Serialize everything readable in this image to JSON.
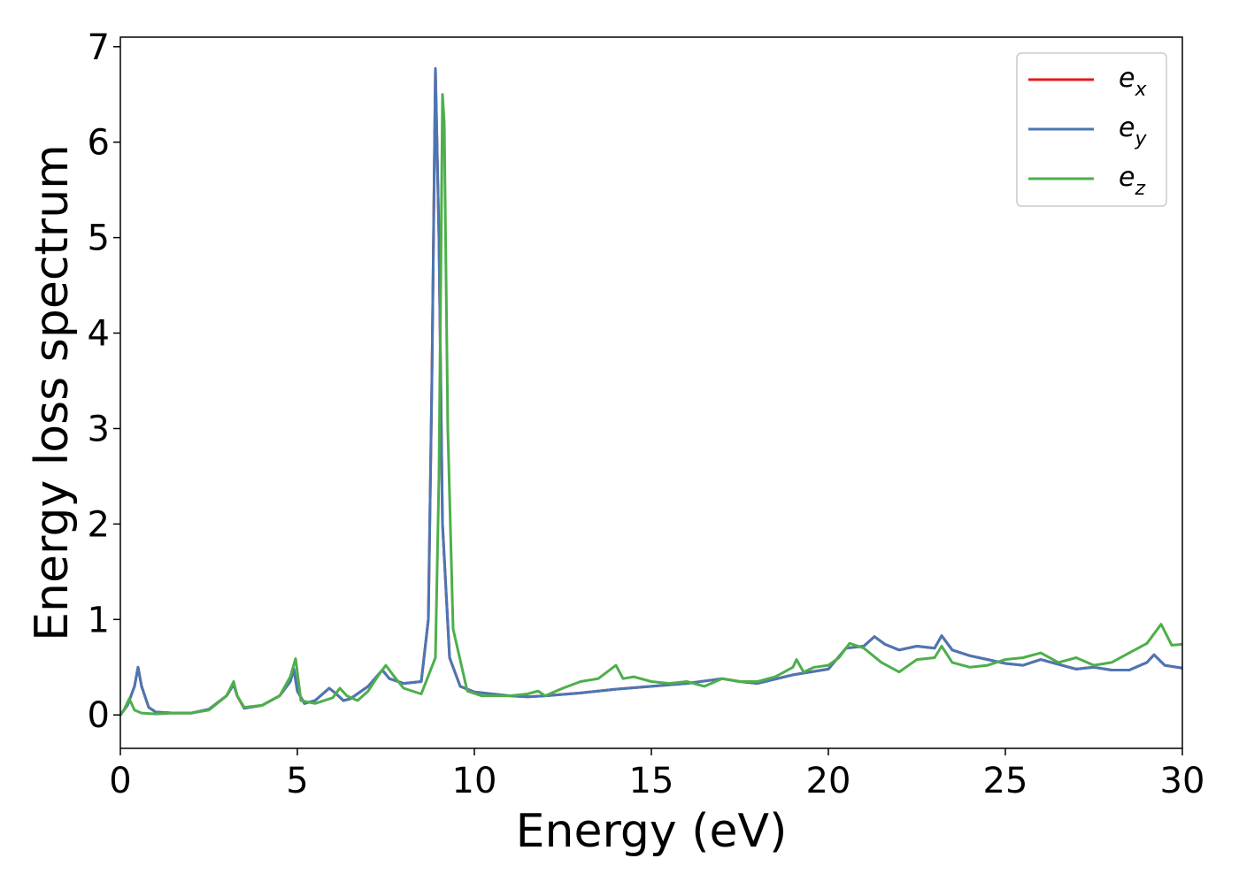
{
  "chart_data": {
    "type": "line",
    "title": "",
    "xlabel": "Energy (eV)",
    "ylabel": "Energy loss spectrum",
    "xlim": [
      0,
      30
    ],
    "ylim": [
      -0.35,
      7.1
    ],
    "xticks": [
      0,
      5,
      10,
      15,
      20,
      25,
      30
    ],
    "yticks": [
      0,
      1,
      2,
      3,
      4,
      5,
      6,
      7
    ],
    "xtick_labels": [
      "0",
      "5",
      "10",
      "15",
      "20",
      "25",
      "30"
    ],
    "ytick_labels": [
      "0",
      "1",
      "2",
      "3",
      "4",
      "5",
      "6",
      "7"
    ],
    "grid": false,
    "legend_position": "top-right",
    "series": [
      {
        "name": "e_x",
        "label_base": "e",
        "label_sub": "x",
        "color": "#e41a1c",
        "x": [
          0,
          0.2,
          0.4,
          0.5,
          0.6,
          0.8,
          1.0,
          1.5,
          2.0,
          2.5,
          3.0,
          3.2,
          3.3,
          3.5,
          4.0,
          4.5,
          4.8,
          4.9,
          5.0,
          5.2,
          5.5,
          5.9,
          6.1,
          6.3,
          6.5,
          7.0,
          7.4,
          7.6,
          8.0,
          8.5,
          8.7,
          8.8,
          8.9,
          9.0,
          9.1,
          9.3,
          9.6,
          10.0,
          10.5,
          11.0,
          11.5,
          12.0,
          13.0,
          14.0,
          15.0,
          16.0,
          17.0,
          17.5,
          18.0,
          19.0,
          20.0,
          20.5,
          21.0,
          21.3,
          21.6,
          22.0,
          22.5,
          23.0,
          23.2,
          23.5,
          24.0,
          24.5,
          25.0,
          25.5,
          26.0,
          26.5,
          27.0,
          27.5,
          28.0,
          28.5,
          29.0,
          29.2,
          29.5,
          30.0
        ],
        "y": [
          0.0,
          0.1,
          0.3,
          0.5,
          0.3,
          0.08,
          0.03,
          0.02,
          0.02,
          0.06,
          0.2,
          0.32,
          0.2,
          0.07,
          0.1,
          0.2,
          0.35,
          0.48,
          0.25,
          0.12,
          0.15,
          0.28,
          0.22,
          0.15,
          0.17,
          0.3,
          0.47,
          0.38,
          0.33,
          0.35,
          1.0,
          3.5,
          6.77,
          5.0,
          2.0,
          0.6,
          0.3,
          0.24,
          0.22,
          0.2,
          0.19,
          0.2,
          0.23,
          0.27,
          0.3,
          0.33,
          0.38,
          0.35,
          0.33,
          0.42,
          0.48,
          0.7,
          0.72,
          0.82,
          0.74,
          0.68,
          0.72,
          0.7,
          0.83,
          0.68,
          0.62,
          0.58,
          0.54,
          0.52,
          0.58,
          0.53,
          0.48,
          0.5,
          0.47,
          0.47,
          0.55,
          0.63,
          0.52,
          0.49
        ]
      },
      {
        "name": "e_y",
        "label_base": "e",
        "label_sub": "y",
        "color": "#4a77b4",
        "x": [
          0,
          0.2,
          0.4,
          0.5,
          0.6,
          0.8,
          1.0,
          1.5,
          2.0,
          2.5,
          3.0,
          3.2,
          3.3,
          3.5,
          4.0,
          4.5,
          4.8,
          4.9,
          5.0,
          5.2,
          5.5,
          5.9,
          6.1,
          6.3,
          6.5,
          7.0,
          7.4,
          7.6,
          8.0,
          8.5,
          8.7,
          8.8,
          8.9,
          9.0,
          9.1,
          9.3,
          9.6,
          10.0,
          10.5,
          11.0,
          11.5,
          12.0,
          13.0,
          14.0,
          15.0,
          16.0,
          17.0,
          17.5,
          18.0,
          19.0,
          20.0,
          20.5,
          21.0,
          21.3,
          21.6,
          22.0,
          22.5,
          23.0,
          23.2,
          23.5,
          24.0,
          24.5,
          25.0,
          25.5,
          26.0,
          26.5,
          27.0,
          27.5,
          28.0,
          28.5,
          29.0,
          29.2,
          29.5,
          30.0
        ],
        "y": [
          0.0,
          0.1,
          0.3,
          0.5,
          0.3,
          0.08,
          0.03,
          0.02,
          0.02,
          0.06,
          0.2,
          0.32,
          0.2,
          0.07,
          0.1,
          0.2,
          0.35,
          0.48,
          0.25,
          0.12,
          0.15,
          0.28,
          0.22,
          0.15,
          0.17,
          0.3,
          0.47,
          0.38,
          0.33,
          0.35,
          1.0,
          3.5,
          6.77,
          5.0,
          2.0,
          0.6,
          0.3,
          0.24,
          0.22,
          0.2,
          0.19,
          0.2,
          0.23,
          0.27,
          0.3,
          0.33,
          0.38,
          0.35,
          0.33,
          0.42,
          0.48,
          0.7,
          0.72,
          0.82,
          0.74,
          0.68,
          0.72,
          0.7,
          0.83,
          0.68,
          0.62,
          0.58,
          0.54,
          0.52,
          0.58,
          0.53,
          0.48,
          0.5,
          0.47,
          0.47,
          0.55,
          0.63,
          0.52,
          0.49
        ]
      },
      {
        "name": "e_z",
        "label_base": "e",
        "label_sub": "z",
        "color": "#4daf4a",
        "x": [
          0,
          0.1,
          0.25,
          0.4,
          0.6,
          1.0,
          1.5,
          2.0,
          2.5,
          3.0,
          3.2,
          3.3,
          3.5,
          4.0,
          4.5,
          4.8,
          4.95,
          5.1,
          5.5,
          6.0,
          6.2,
          6.4,
          6.7,
          7.0,
          7.3,
          7.5,
          7.7,
          8.0,
          8.5,
          8.9,
          9.0,
          9.1,
          9.15,
          9.25,
          9.4,
          9.8,
          10.2,
          11.0,
          11.5,
          11.8,
          12.0,
          12.5,
          13.0,
          13.5,
          14.0,
          14.2,
          14.5,
          15.0,
          15.5,
          16.0,
          16.5,
          17.0,
          17.5,
          18.0,
          18.5,
          19.0,
          19.1,
          19.3,
          19.6,
          20.0,
          20.3,
          20.6,
          21.0,
          21.5,
          22.0,
          22.5,
          23.0,
          23.2,
          23.5,
          24.0,
          24.5,
          25.0,
          25.5,
          26.0,
          26.5,
          27.0,
          27.5,
          28.0,
          28.5,
          29.0,
          29.4,
          29.7,
          30.0
        ],
        "y": [
          0.0,
          0.05,
          0.17,
          0.05,
          0.02,
          0.01,
          0.02,
          0.02,
          0.05,
          0.2,
          0.35,
          0.2,
          0.08,
          0.1,
          0.2,
          0.4,
          0.59,
          0.15,
          0.12,
          0.18,
          0.28,
          0.2,
          0.15,
          0.25,
          0.42,
          0.52,
          0.42,
          0.28,
          0.22,
          0.6,
          2.5,
          6.5,
          6.2,
          3.0,
          0.9,
          0.25,
          0.2,
          0.2,
          0.22,
          0.25,
          0.2,
          0.28,
          0.35,
          0.38,
          0.52,
          0.38,
          0.4,
          0.35,
          0.33,
          0.35,
          0.3,
          0.38,
          0.35,
          0.35,
          0.4,
          0.5,
          0.58,
          0.45,
          0.5,
          0.52,
          0.6,
          0.75,
          0.7,
          0.55,
          0.45,
          0.58,
          0.6,
          0.72,
          0.55,
          0.5,
          0.52,
          0.58,
          0.6,
          0.65,
          0.55,
          0.6,
          0.52,
          0.55,
          0.65,
          0.75,
          0.95,
          0.73,
          0.74
        ]
      }
    ]
  }
}
